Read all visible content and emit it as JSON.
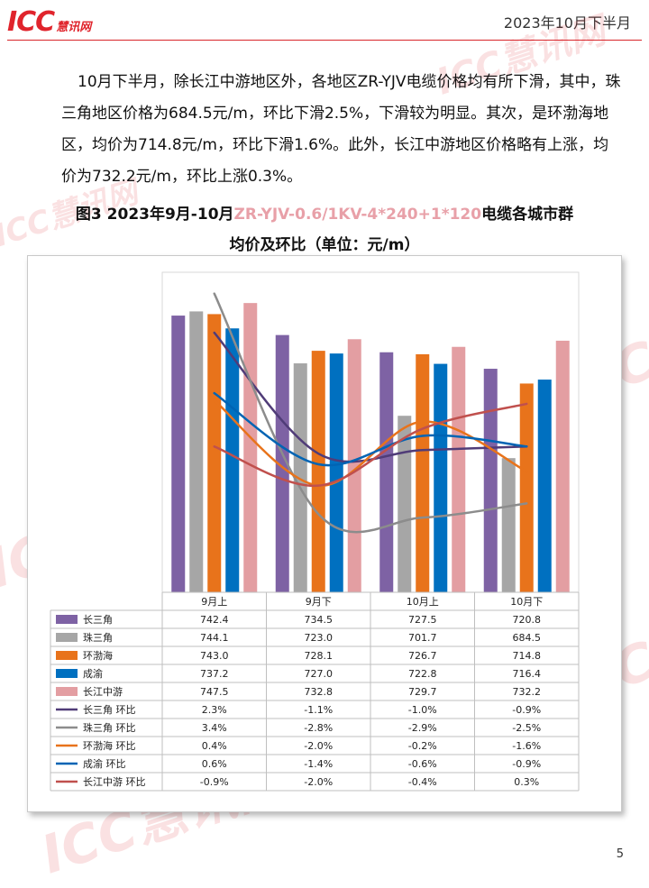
{
  "header": {
    "logo_text": "ICC",
    "logo_cn": "慧讯网",
    "period": "2023年10月下半月"
  },
  "paragraph": "10月下半月，除长江中游地区外，各地区ZR-YJV电缆价格均有所下滑，其中，珠三角地区价格为684.5元/m，环比下滑2.5%，下滑较为明显。其次，是环渤海地区，均价为714.8元/m，环比下滑1.6%。此外，长江中游地区价格略有上涨，均价为732.2元/m，环比上涨0.3%。",
  "title": {
    "line1_prefix": "图3 2023年9月-10月",
    "line1_highlight": "ZR-YJV-0.6/1KV-4*240+1*120",
    "line1_suffix": "电缆各城市群",
    "line2": "均价及环比（单位：元/m）"
  },
  "page_number": "5",
  "chart_data": {
    "type": "bar",
    "categories": [
      "9月上",
      "9月下",
      "10月上",
      "10月下"
    ],
    "series": [
      {
        "name": "长三角",
        "values": [
          742.4,
          734.5,
          727.5,
          720.8
        ],
        "color": "#7e62a4"
      },
      {
        "name": "珠三角",
        "values": [
          744.1,
          723.0,
          701.7,
          684.5
        ],
        "color": "#a6a6a6"
      },
      {
        "name": "环渤海",
        "values": [
          743.0,
          728.1,
          726.7,
          714.8
        ],
        "color": "#e8731b"
      },
      {
        "name": "成渝",
        "values": [
          737.2,
          727.0,
          722.8,
          716.4
        ],
        "color": "#0070c0"
      },
      {
        "name": "长江中游",
        "values": [
          747.5,
          732.8,
          729.7,
          732.2
        ],
        "color": "#e39ea2"
      }
    ],
    "line_series": [
      {
        "name": "长三角 环比",
        "values": [
          2.3,
          -1.1,
          -1.0,
          -0.9
        ],
        "labels": [
          "2.3%",
          "-1.1%",
          "-1.0%",
          "-0.9%"
        ],
        "color": "#503c78"
      },
      {
        "name": "珠三角 环比",
        "values": [
          3.4,
          -2.8,
          -2.9,
          -2.5
        ],
        "labels": [
          "3.4%",
          "-2.8%",
          "-2.9%",
          "-2.5%"
        ],
        "color": "#8c8c8c"
      },
      {
        "name": "环渤海 环比",
        "values": [
          0.4,
          -2.0,
          -0.2,
          -1.6
        ],
        "labels": [
          "0.4%",
          "-2.0%",
          "-0.2%",
          "-1.6%"
        ],
        "color": "#e8731b"
      },
      {
        "name": "成渝 环比",
        "values": [
          0.6,
          -1.4,
          -0.6,
          -0.9
        ],
        "labels": [
          "0.6%",
          "-1.4%",
          "-0.6%",
          "-0.9%"
        ],
        "color": "#0064b4"
      },
      {
        "name": "长江中游 环比",
        "values": [
          -0.9,
          -2.0,
          -0.4,
          0.3
        ],
        "labels": [
          "-0.9%",
          "-2.0%",
          "-0.4%",
          "0.3%"
        ],
        "color": "#c0504d"
      }
    ],
    "bar_ylim": [
      630,
      760
    ],
    "line_ylim": [
      -5,
      4
    ],
    "legend": "data-table",
    "grid": false
  }
}
